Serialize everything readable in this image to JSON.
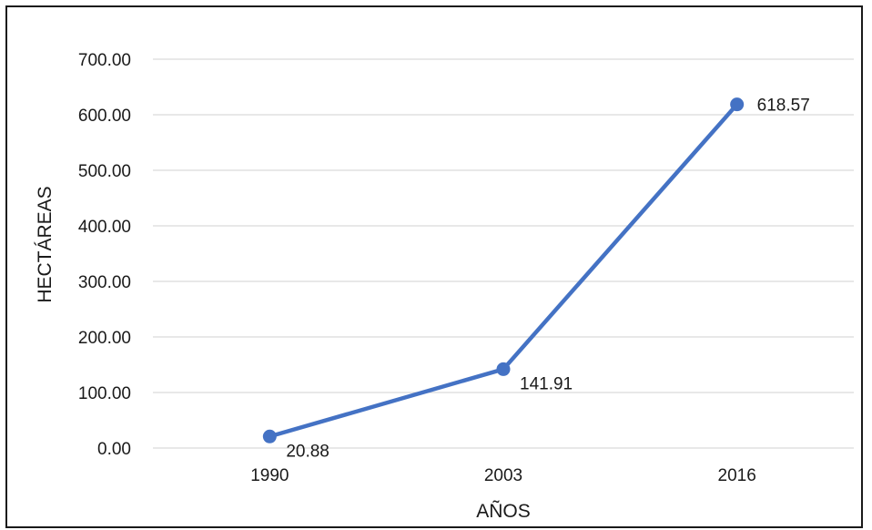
{
  "chart_data": {
    "type": "line",
    "title": "",
    "xlabel": "AÑOS",
    "ylabel": "HECTÁREAS",
    "categories": [
      "1990",
      "2003",
      "2016"
    ],
    "series": [
      {
        "values": [
          20.88,
          141.91,
          618.57
        ],
        "data_labels": [
          "20.88",
          "141.91",
          "618.57"
        ]
      }
    ],
    "ylim": [
      0,
      700
    ],
    "yticks": [
      "0.00",
      "100.00",
      "200.00",
      "300.00",
      "400.00",
      "500.00",
      "600.00",
      "700.00"
    ],
    "grid": true,
    "legend": "none",
    "colors": {
      "series": "#4472c4",
      "grid": "#d9d9d9",
      "frame": "#1a1a1a"
    }
  }
}
